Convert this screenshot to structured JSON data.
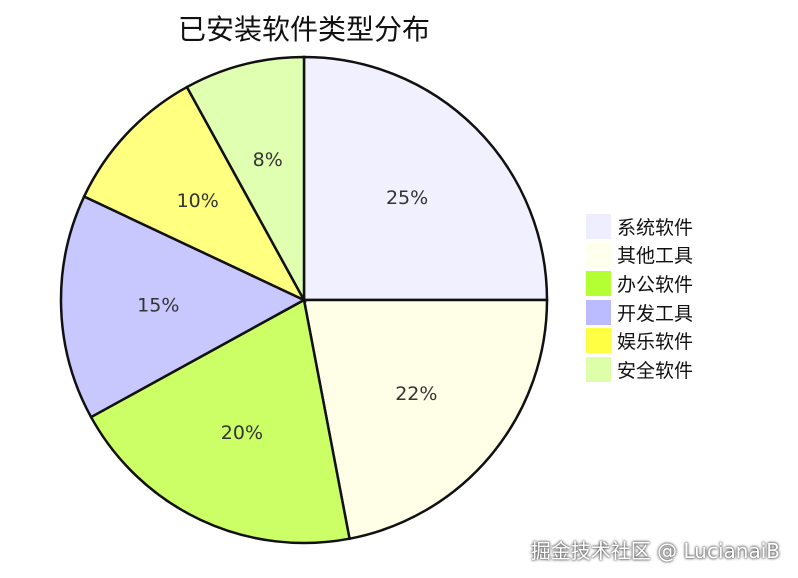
{
  "chart_data": {
    "type": "pie",
    "title": "已安装软件类型分布",
    "categories": [
      "系统软件",
      "其他工具",
      "办公软件",
      "开发工具",
      "娱乐软件",
      "安全软件"
    ],
    "values": [
      25,
      22,
      20,
      15,
      10,
      8
    ],
    "labels": [
      "25%",
      "22%",
      "20%",
      "15%",
      "10%",
      "8%"
    ],
    "slice_colors": [
      "#f0f0ff",
      "#ffffe8",
      "#ccff66",
      "#c8c8ff",
      "#ffff80",
      "#e0ffb0"
    ],
    "legend_colors": [
      "#eeeeff",
      "#ffffee",
      "#b3ff33",
      "#bbbbff",
      "#ffff44",
      "#ddffaa"
    ],
    "start": "top",
    "direction": "clockwise",
    "legend": "right"
  },
  "watermark": "掘金技术社区 @ LucianaiB"
}
